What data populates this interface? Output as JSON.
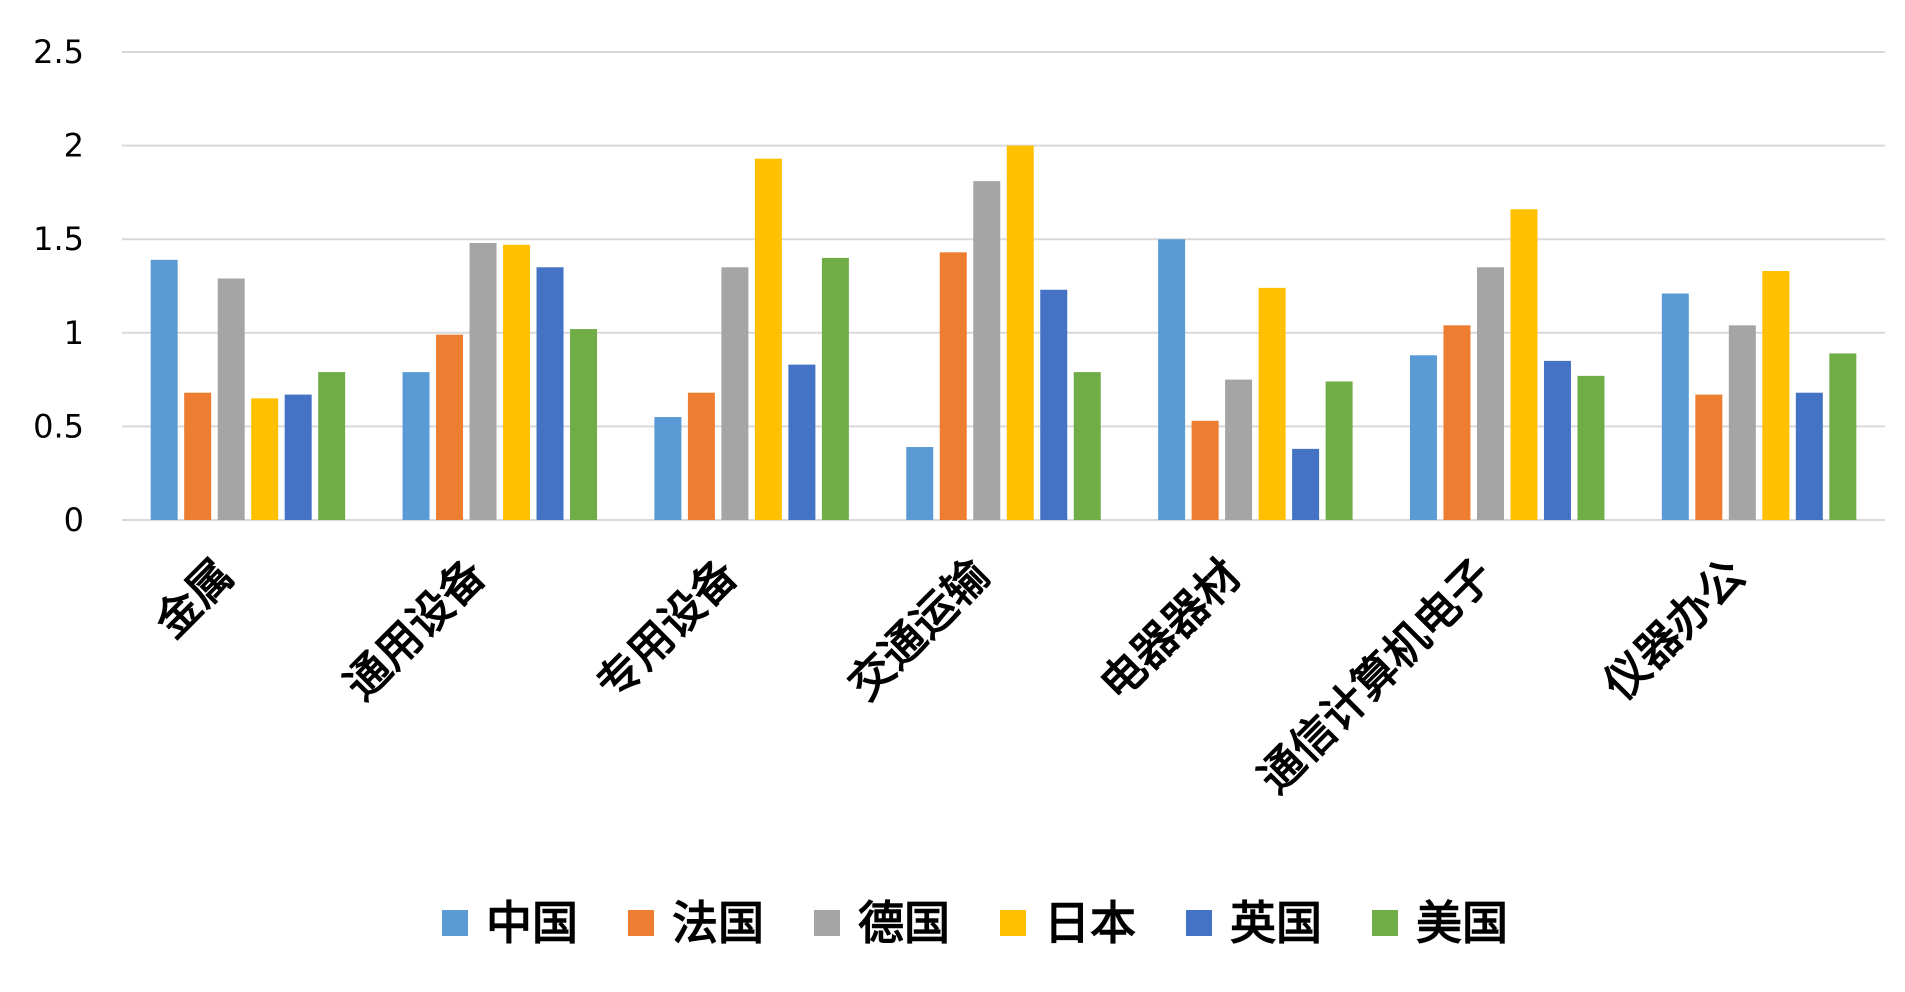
{
  "chart_data": {
    "type": "bar",
    "title": "",
    "xlabel": "",
    "ylabel": "",
    "ylim": [
      0,
      2.5
    ],
    "yticks": [
      "0",
      "0.5",
      "1",
      "1.5",
      "2",
      "2.5"
    ],
    "grid": true,
    "legend_position": "bottom",
    "categories": [
      "金属",
      "通用设备",
      "专用设备",
      "交通运输",
      "电器器材",
      "通信计算机电子",
      "仪器办公"
    ],
    "series": [
      {
        "name": "中国",
        "color": "#5B9BD5",
        "values": [
          1.39,
          0.79,
          0.55,
          0.39,
          1.5,
          0.88,
          1.21
        ]
      },
      {
        "name": "法国",
        "color": "#ED7D31",
        "values": [
          0.68,
          0.99,
          0.68,
          1.43,
          0.53,
          1.04,
          0.67
        ]
      },
      {
        "name": "德国",
        "color": "#A5A5A5",
        "values": [
          1.29,
          1.48,
          1.35,
          1.81,
          0.75,
          1.35,
          1.04
        ]
      },
      {
        "name": "日本",
        "color": "#FFC000",
        "values": [
          0.65,
          1.47,
          1.93,
          2.0,
          1.24,
          1.66,
          1.33
        ]
      },
      {
        "name": "英国",
        "color": "#4472C4",
        "values": [
          0.67,
          1.35,
          0.83,
          1.23,
          0.38,
          0.85,
          0.68
        ]
      },
      {
        "name": "美国",
        "color": "#70AD47",
        "values": [
          0.79,
          1.02,
          1.4,
          0.79,
          0.74,
          0.77,
          0.89
        ]
      }
    ]
  }
}
